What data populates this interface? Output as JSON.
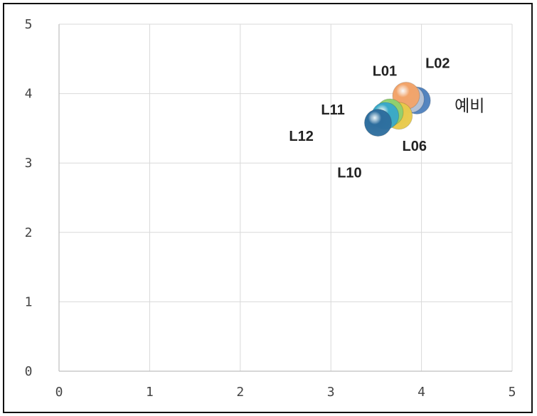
{
  "chart_data": {
    "type": "scatter",
    "title": "",
    "xlabel": "",
    "ylabel": "",
    "xlim": [
      0,
      5
    ],
    "ylim": [
      0,
      5
    ],
    "x_ticks": [
      "0",
      "1",
      "2",
      "3",
      "4",
      "5"
    ],
    "y_ticks": [
      "0",
      "1",
      "2",
      "3",
      "4",
      "5"
    ],
    "grid": true,
    "legend": "none",
    "points": [
      {
        "label": "예비",
        "x": 3.95,
        "y": 3.9,
        "color": "#4f81bd"
      },
      {
        "label": "L02",
        "x": 3.88,
        "y": 3.92,
        "color": "#b8c4d6"
      },
      {
        "label": "L01",
        "x": 3.83,
        "y": 3.97,
        "color": "#f2a46a"
      },
      {
        "label": "L06",
        "x": 3.75,
        "y": 3.68,
        "color": "#e8c94a"
      },
      {
        "label": "L11",
        "x": 3.65,
        "y": 3.73,
        "color": "#8fcf6e"
      },
      {
        "label": "L12",
        "x": 3.6,
        "y": 3.68,
        "color": "#3aa9c8"
      },
      {
        "label": "L10",
        "x": 3.52,
        "y": 3.58,
        "color": "#2e6e9e"
      }
    ]
  }
}
